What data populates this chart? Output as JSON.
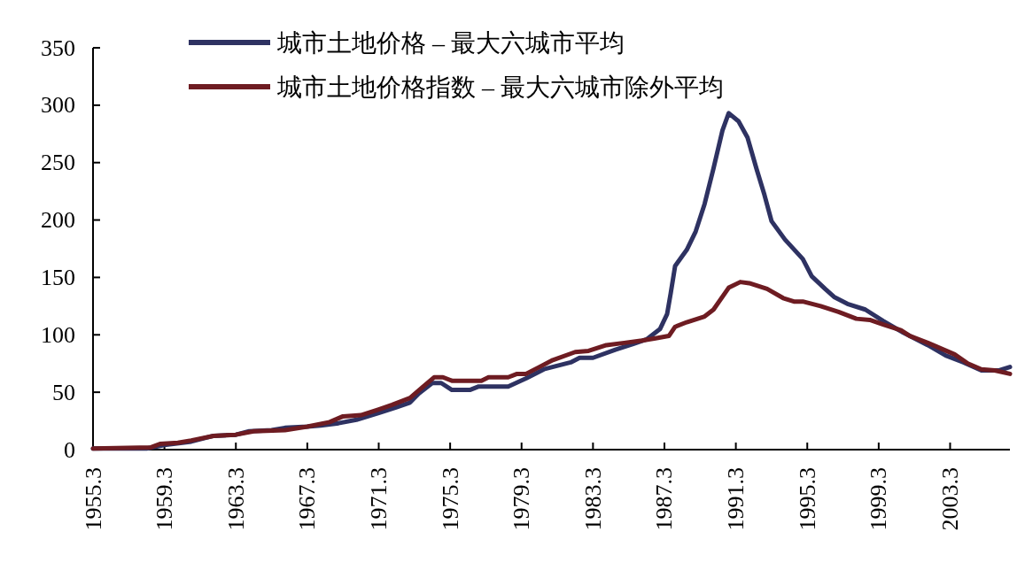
{
  "chart_data": {
    "type": "line",
    "x": [
      1955.3,
      1958.3,
      1959.3,
      1960.8,
      1962.05,
      1963.3,
      1964.05,
      1965.3,
      1966.05,
      1967.3,
      1968.05,
      1969.05,
      1970.05,
      1971.3,
      1972.3,
      1973.05,
      1973.55,
      1974.3,
      1974.8,
      1975.4,
      1976.4,
      1976.9,
      1978.55,
      1979.55,
      1980.55,
      1982.05,
      1982.55,
      1983.3,
      1984.55,
      1985.55,
      1986.3,
      1987.05,
      1987.45,
      1987.65,
      1987.9,
      1988.55,
      1989.05,
      1989.55,
      1990.05,
      1990.55,
      1990.9,
      1991.45,
      1991.95,
      1992.45,
      1992.9,
      1993.3,
      1994.05,
      1995.05,
      1995.55,
      1996.3,
      1996.8,
      1997.55,
      1998.55,
      1999.55,
      2000.55,
      2002.05,
      2003.05,
      2004.05,
      2005.05,
      2006.05,
      2006.65
    ],
    "series": [
      {
        "name": "城市土地价格 – 最大六城市平均",
        "color": "#2e3262",
        "values": [
          1,
          1,
          4,
          7,
          12,
          13,
          16,
          17,
          19,
          20,
          21,
          23,
          26,
          32,
          37,
          41,
          49,
          58,
          58,
          52,
          52,
          55,
          55,
          62,
          70,
          76,
          80,
          80,
          87,
          92,
          96,
          105,
          118,
          136,
          160,
          174,
          190,
          214,
          245,
          278,
          293,
          286,
          272,
          245,
          222,
          199,
          183,
          166,
          151,
          140,
          133,
          127,
          122,
          112,
          103,
          91,
          82,
          76,
          69,
          69,
          72
        ]
      },
      {
        "name": "城市土地价格指数 – 最大六城市除外平均",
        "color": "#6e1c22",
        "x": [
          1955.3,
          1958.55,
          1959.05,
          1960.05,
          1960.8,
          1962.05,
          1963.3,
          1964.3,
          1966.05,
          1967.3,
          1968.55,
          1969.3,
          1970.3,
          1971.3,
          1972.05,
          1973.05,
          1973.8,
          1974.4,
          1974.9,
          1975.4,
          1977.05,
          1977.45,
          1978.55,
          1979.05,
          1979.55,
          1980.3,
          1981.05,
          1982.3,
          1983.05,
          1984.05,
          1985.05,
          1986.05,
          1986.8,
          1987.55,
          1987.9,
          1988.55,
          1989.55,
          1990.05,
          1990.9,
          1991.55,
          1992.05,
          1993.05,
          1993.95,
          1994.55,
          1995.05,
          1996.05,
          1997.05,
          1998.05,
          1998.8,
          1999.55,
          2000.55,
          2001.05,
          2002.05,
          2003.55,
          2004.3,
          2005.05,
          2005.8,
          2006.65
        ],
        "values": [
          1,
          2,
          5,
          6,
          8,
          12,
          13,
          16,
          17,
          20,
          24,
          29,
          30,
          35,
          39,
          45,
          55,
          63,
          63,
          60,
          60,
          63,
          63,
          66,
          66,
          72,
          78,
          85,
          86,
          91,
          93,
          95,
          97,
          99,
          107,
          111,
          116,
          122,
          141,
          146,
          145,
          140,
          132,
          129,
          129,
          125,
          120,
          114,
          113,
          109,
          104,
          99,
          93,
          83,
          75,
          70,
          69,
          66
        ]
      }
    ],
    "xlim": [
      1955.3,
      2006.65
    ],
    "xticks": [
      1955.3,
      1959.3,
      1963.3,
      1967.3,
      1971.3,
      1975.3,
      1979.3,
      1983.3,
      1987.3,
      1991.3,
      1995.3,
      1999.3,
      2003.3
    ],
    "ylim": [
      0,
      350
    ],
    "yticks": [
      0,
      50,
      100,
      150,
      200,
      250,
      300,
      350
    ],
    "grid": false,
    "legend": "top",
    "marker": "none",
    "line_style": "solid"
  }
}
